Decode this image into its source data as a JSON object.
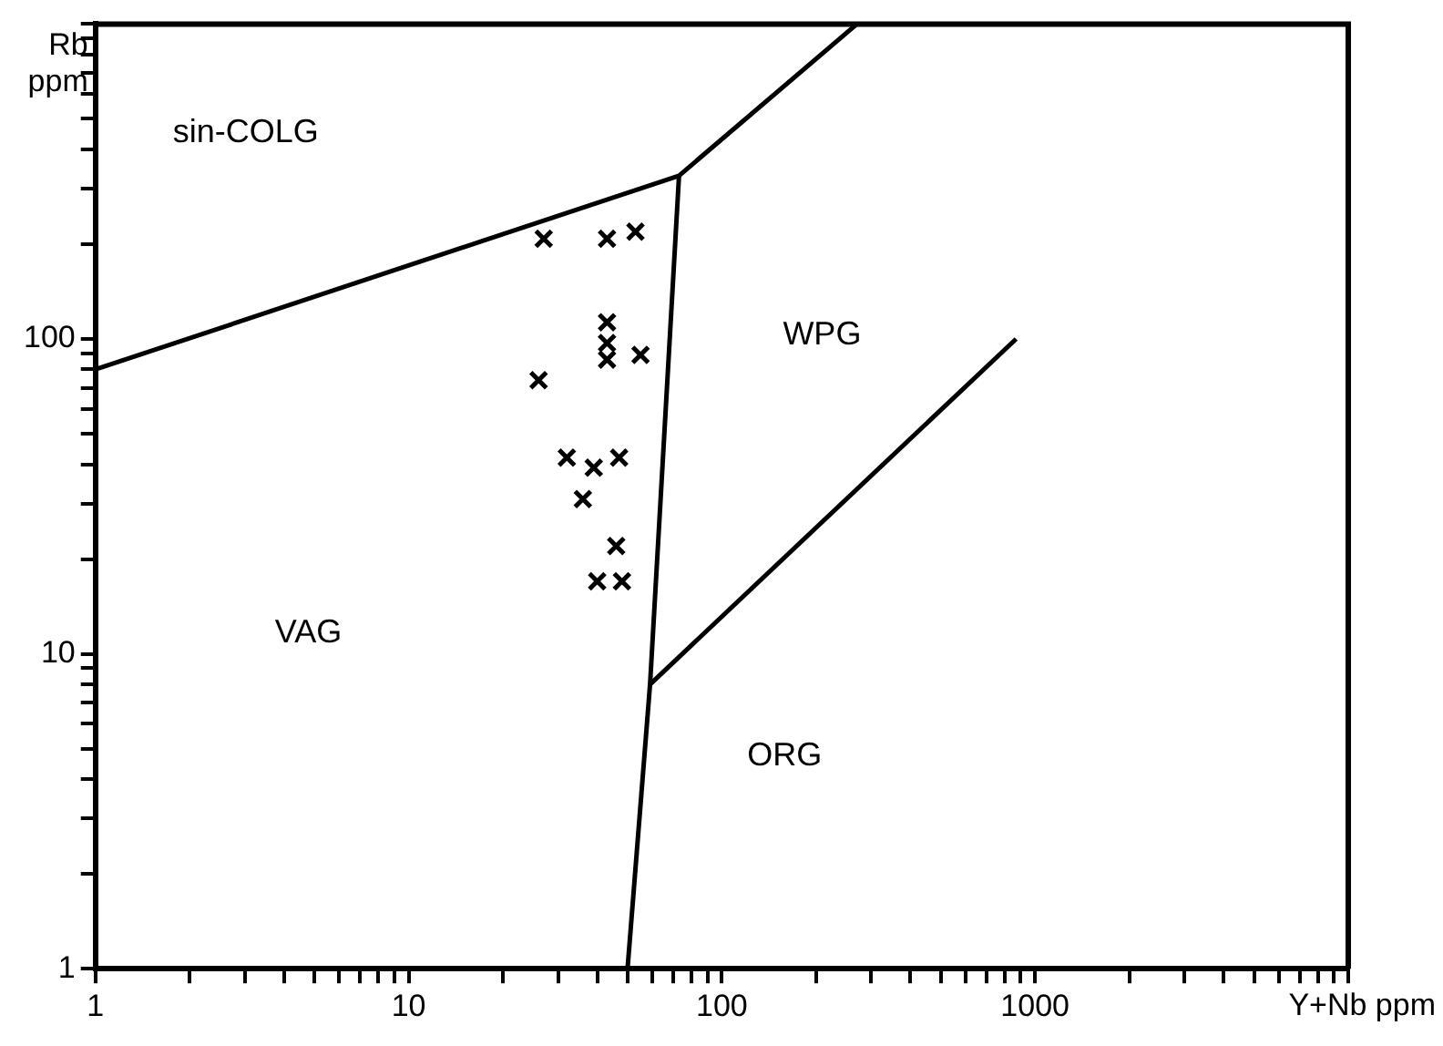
{
  "chart_data": {
    "type": "scatter",
    "xlabel": "Y+Nb ppm",
    "ylabel": "Rb ppm",
    "log": "xy",
    "grid": false,
    "legend": false,
    "xlim": [
      1,
      10000
    ],
    "ylim": [
      1,
      1000
    ],
    "xticks": [
      1,
      {
        "value": 2,
        "label": null
      },
      {
        "value": 3,
        "label": null
      },
      {
        "value": 4,
        "label": null
      },
      {
        "value": 5,
        "label": null
      },
      {
        "value": 6,
        "label": null
      },
      {
        "value": 7,
        "label": null
      },
      {
        "value": 8,
        "label": null
      },
      {
        "value": 9,
        "label": null
      },
      10,
      {
        "value": 20,
        "label": null
      },
      {
        "value": 30,
        "label": null
      },
      {
        "value": 40,
        "label": null
      },
      {
        "value": 50,
        "label": null
      },
      {
        "value": 60,
        "label": null
      },
      {
        "value": 70,
        "label": null
      },
      {
        "value": 80,
        "label": null
      },
      {
        "value": 90,
        "label": null
      },
      100,
      {
        "value": 200,
        "label": null
      },
      {
        "value": 300,
        "label": null
      },
      {
        "value": 400,
        "label": null
      },
      {
        "value": 500,
        "label": null
      },
      {
        "value": 600,
        "label": null
      },
      {
        "value": 700,
        "label": null
      },
      {
        "value": 800,
        "label": null
      },
      {
        "value": 900,
        "label": null
      },
      1000,
      {
        "value": 2000,
        "label": null
      },
      {
        "value": 3000,
        "label": null
      },
      {
        "value": 4000,
        "label": null
      },
      {
        "value": 5000,
        "label": null
      },
      {
        "value": 6000,
        "label": null
      },
      {
        "value": 7000,
        "label": null
      },
      {
        "value": 8000,
        "label": null
      },
      {
        "value": 9000,
        "label": null
      },
      {
        "value": 10000,
        "label": null
      }
    ],
    "yticks": [
      1,
      {
        "value": 2,
        "label": null
      },
      {
        "value": 3,
        "label": null
      },
      {
        "value": 4,
        "label": null
      },
      {
        "value": 5,
        "label": null
      },
      {
        "value": 6,
        "label": null
      },
      {
        "value": 7,
        "label": null
      },
      {
        "value": 8,
        "label": null
      },
      {
        "value": 9,
        "label": null
      },
      10,
      {
        "value": 20,
        "label": null
      },
      {
        "value": 30,
        "label": null
      },
      {
        "value": 40,
        "label": null
      },
      {
        "value": 50,
        "label": null
      },
      {
        "value": 60,
        "label": null
      },
      {
        "value": 70,
        "label": null
      },
      {
        "value": 80,
        "label": null
      },
      {
        "value": 90,
        "label": null
      },
      100,
      {
        "value": 200,
        "label": null
      },
      {
        "value": 300,
        "label": null
      },
      {
        "value": 400,
        "label": null
      },
      {
        "value": 500,
        "label": null
      },
      {
        "value": 600,
        "label": null
      },
      {
        "value": 700,
        "label": null
      },
      {
        "value": 800,
        "label": null
      },
      {
        "value": 900,
        "label": null
      },
      {
        "value": 1000,
        "label": null
      }
    ],
    "series": [
      {
        "marker": "cross",
        "color": "#000000",
        "x": [
          27,
          43,
          53,
          43,
          43,
          43,
          55,
          26,
          32,
          39,
          36,
          47,
          46,
          40,
          48
        ],
        "values": [
          208,
          208,
          219,
          113,
          97,
          86,
          89,
          74,
          42,
          39,
          31,
          42,
          22,
          17,
          17
        ]
      },
      {
        "type": "line",
        "marker": "none",
        "color": "#000000",
        "x": [
          1,
          73,
          270
        ],
        "values": [
          80,
          330,
          1000
        ]
      },
      {
        "type": "line",
        "marker": "none",
        "color": "#000000",
        "x": [
          50,
          59,
          73
        ],
        "values": [
          1,
          8,
          330
        ]
      },
      {
        "type": "line",
        "marker": "none",
        "color": "#000000",
        "x": [
          59,
          870
        ],
        "values": [
          8,
          100
        ]
      }
    ],
    "annotations": [
      "sin-COLG",
      "WPG",
      "VAG",
      "ORG"
    ]
  }
}
